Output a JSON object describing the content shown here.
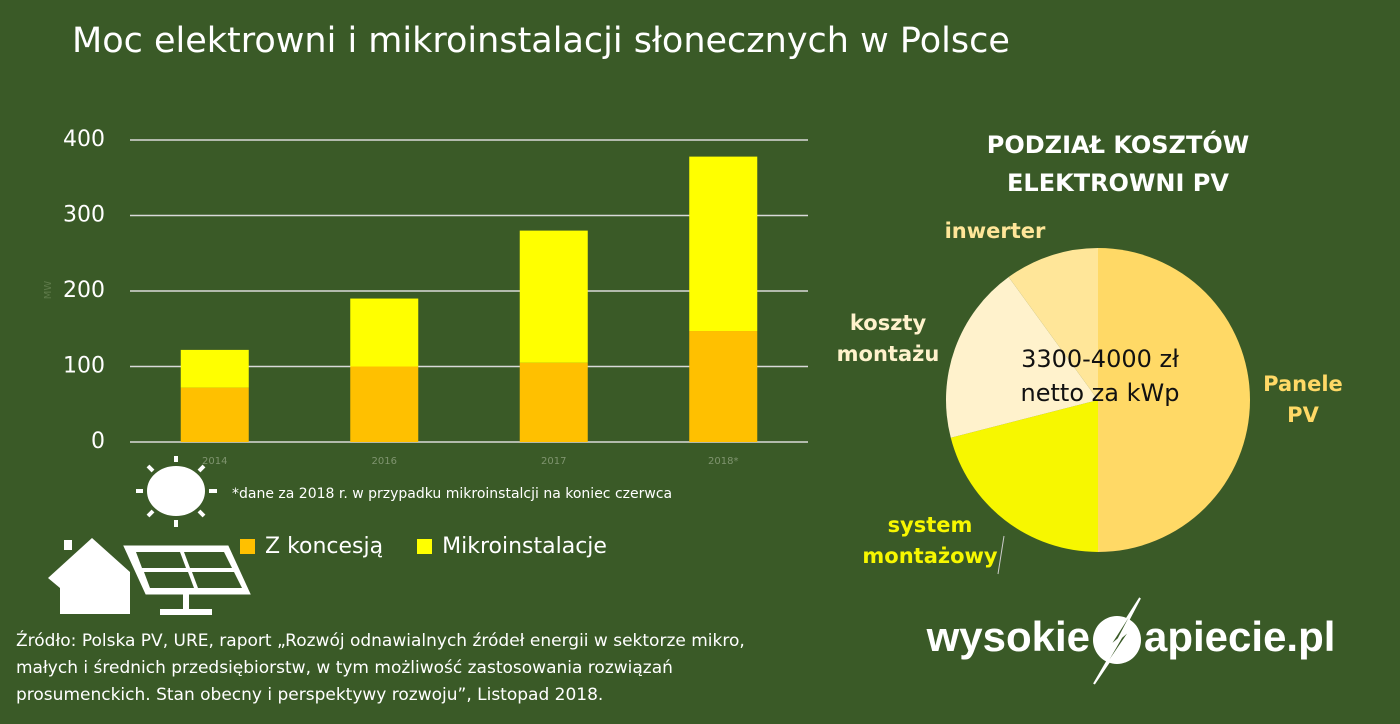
{
  "title": "Moc elektrowni i mikroinstalacji słonecznych w Polsce",
  "chart_data": [
    {
      "type": "bar",
      "stacked": true,
      "y_label": "MW",
      "categories": [
        "2014",
        "2016",
        "2017",
        "2018*"
      ],
      "series": [
        {
          "name": "Z koncesją",
          "color": "#ffc000",
          "values": [
            72,
            100,
            105,
            147
          ]
        },
        {
          "name": "Mikroinstalacje",
          "color": "#ffff00",
          "values": [
            50,
            90,
            175,
            231
          ]
        }
      ],
      "ylim": [
        0,
        400
      ],
      "yticks": [
        0,
        100,
        200,
        300,
        400
      ],
      "grid": true
    },
    {
      "type": "pie",
      "title": "PODZIAŁ KOSZTÓW ELEKTROWNI PV",
      "center_text": "3300-4000 zł netto za kWp",
      "categories": [
        "Panele PV",
        "system montażowy",
        "koszty montażu",
        "inwerter"
      ],
      "values": [
        50,
        21,
        19,
        10
      ],
      "colors": [
        "#ffd966",
        "#f7f700",
        "#fff2cc",
        "#ffe699"
      ]
    }
  ],
  "footnote": "*dane za 2018 r. w przypadku mikroinstalcji na koniec czerwca",
  "source": "Źródło: Polska PV, URE, raport „Rozwój odnawialnych źródeł energii w sektorze mikro, małych i średnich przedsiębiorstw, w tym możliwość zastosowania rozwiązań prosumenckich. Stan obecny i perspektywy rozwoju”, Listopad 2018.",
  "logo": {
    "left": "wysokie",
    "right": "apiecie.pl"
  }
}
